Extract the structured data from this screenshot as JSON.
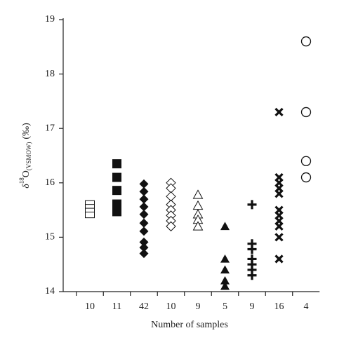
{
  "chart_data": {
    "type": "dot-strip",
    "x_label": "Number of samples",
    "y_label": {
      "delta": "δ",
      "sup": "18",
      "base": "O",
      "sub": "(VSMOW)",
      "unit": "(‰)"
    },
    "categories": [
      "10",
      "11",
      "42",
      "10",
      "9",
      "5",
      "9",
      "16",
      "4"
    ],
    "groups": [
      {
        "marker": "open-square",
        "values": [
          15.62,
          15.55,
          15.48,
          15.41
        ]
      },
      {
        "marker": "filled-square",
        "values": [
          16.35,
          16.1,
          15.86,
          15.61,
          15.47
        ]
      },
      {
        "marker": "filled-diamond",
        "values": [
          15.98,
          15.84,
          15.7,
          15.56,
          15.42,
          15.26,
          15.11,
          14.91,
          14.81,
          14.7
        ]
      },
      {
        "marker": "open-diamond",
        "values": [
          16.0,
          15.9,
          15.75,
          15.6,
          15.5,
          15.4,
          15.3,
          15.2
        ]
      },
      {
        "marker": "open-triangle",
        "values": [
          15.78,
          15.58,
          15.42,
          15.32,
          15.2
        ]
      },
      {
        "marker": "filled-triangle",
        "values": [
          15.2,
          14.6,
          14.4,
          14.2,
          14.1
        ]
      },
      {
        "marker": "plus",
        "values": [
          15.6,
          14.88,
          14.78,
          14.6,
          14.5,
          14.4,
          14.3
        ]
      },
      {
        "marker": "cross",
        "values": [
          17.3,
          16.1,
          16.0,
          15.9,
          15.8,
          15.5,
          15.4,
          15.3,
          15.2,
          15.0,
          14.6
        ]
      },
      {
        "marker": "open-circle",
        "values": [
          18.6,
          17.3,
          16.4,
          16.1
        ]
      }
    ],
    "ylim": [
      14,
      19
    ],
    "yticks": [
      14,
      15,
      16,
      17,
      18,
      19
    ],
    "color": "#111111"
  }
}
